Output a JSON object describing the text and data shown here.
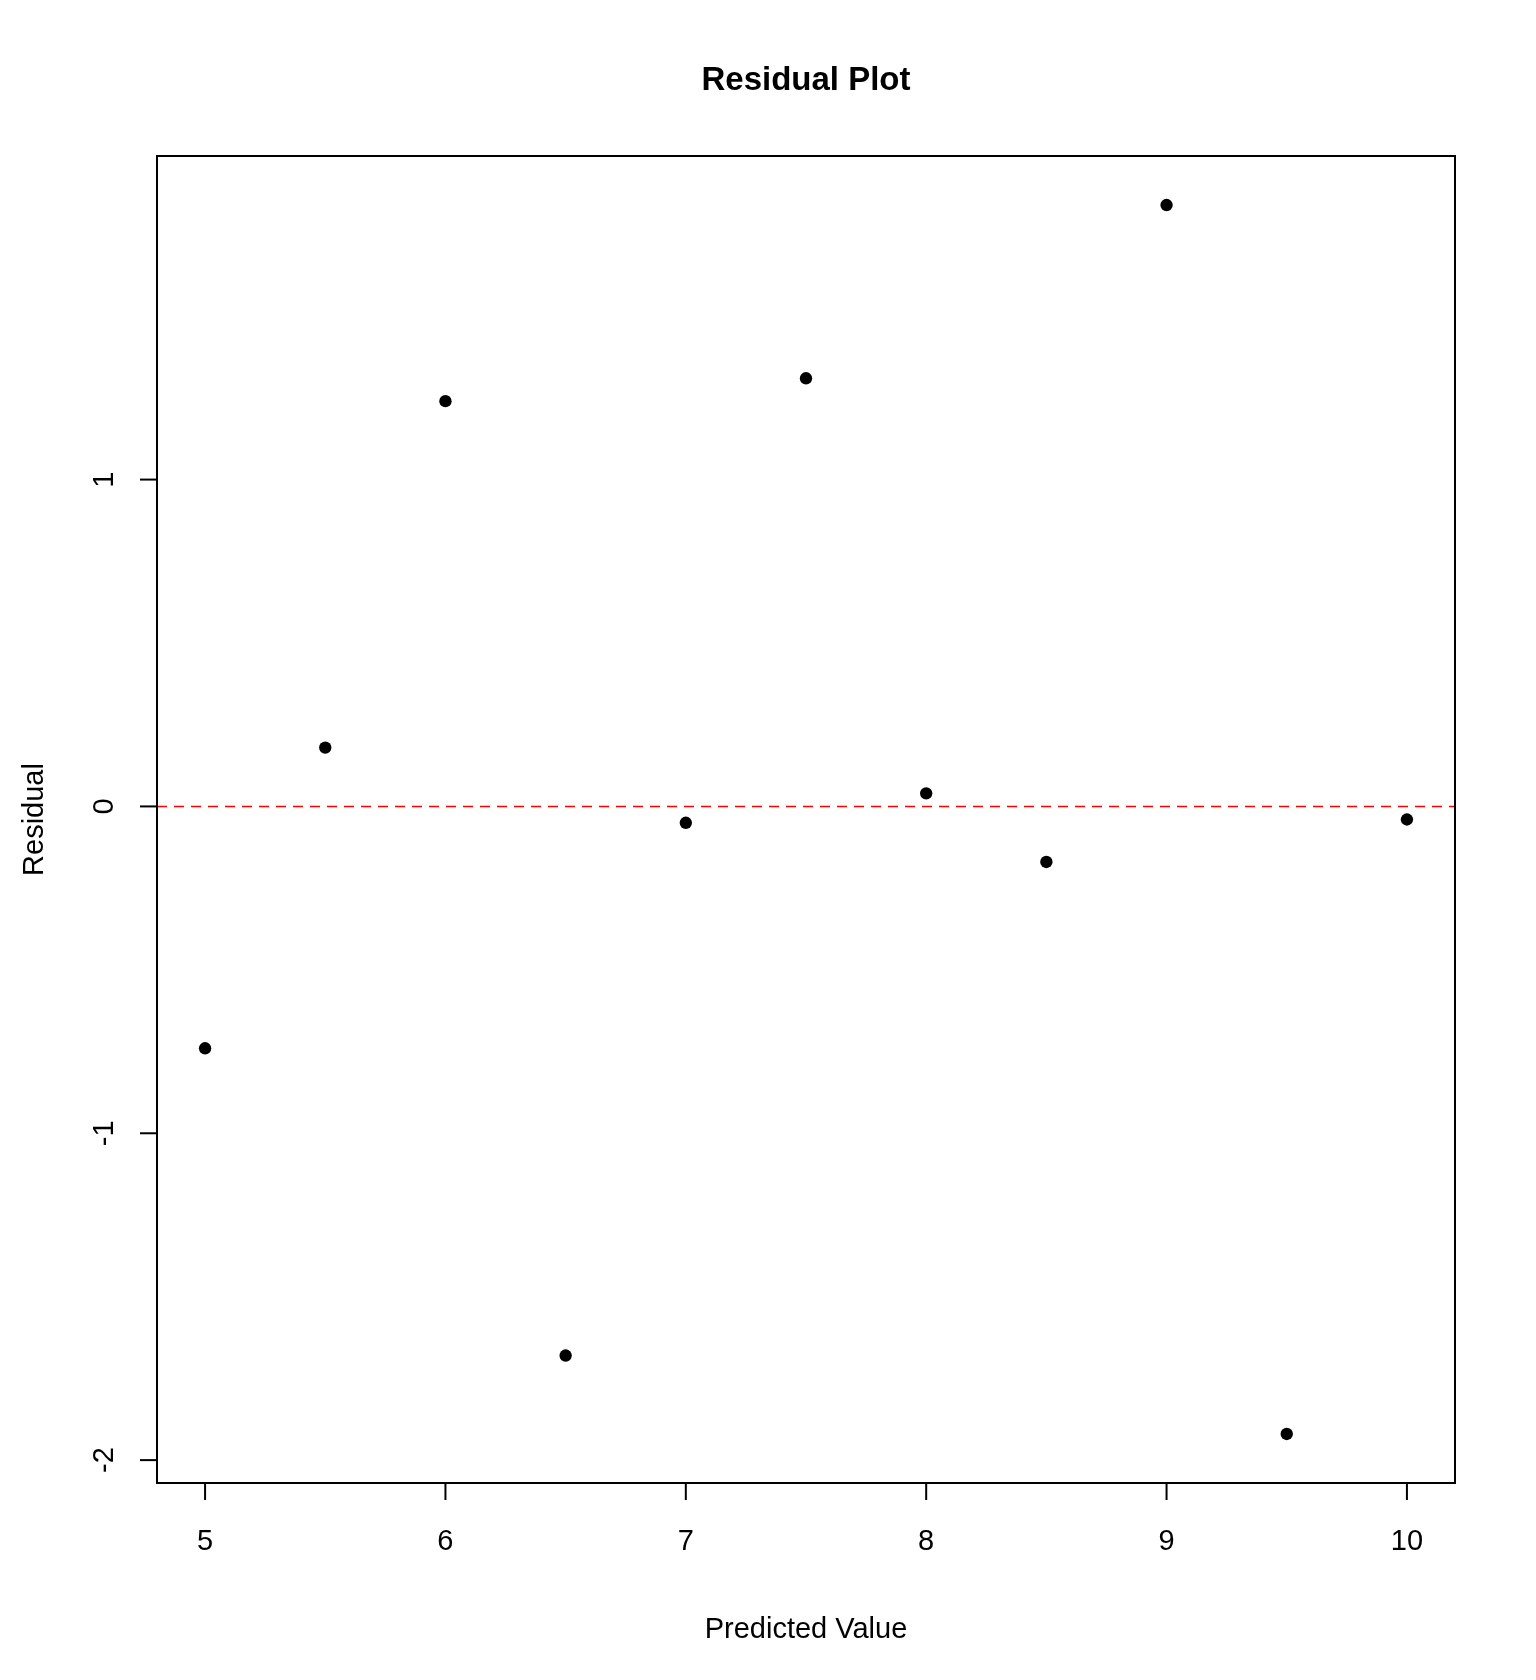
{
  "chart_data": {
    "type": "scatter",
    "title": "Residual Plot",
    "xlabel": "Predicted Value",
    "ylabel": "Residual",
    "x": [
      5,
      5.5,
      6,
      6.5,
      7,
      7.5,
      8,
      8.5,
      9,
      9.5,
      10
    ],
    "values": [
      -0.74,
      0.18,
      1.24,
      -1.68,
      -0.05,
      1.31,
      0.04,
      -0.17,
      1.84,
      -1.92,
      -0.04
    ],
    "color": "#000000",
    "marker": "circle",
    "xlim": [
      4.8,
      10.2
    ],
    "ylim": [
      -2.07,
      1.99
    ],
    "xticks": [
      5,
      6,
      7,
      8,
      9,
      10
    ],
    "yticks": [
      -2,
      -1,
      0,
      1
    ],
    "ref_lines": [
      {
        "axis": "y",
        "value": 0,
        "color": "#ff0000",
        "line_style": "dashed"
      }
    ]
  }
}
